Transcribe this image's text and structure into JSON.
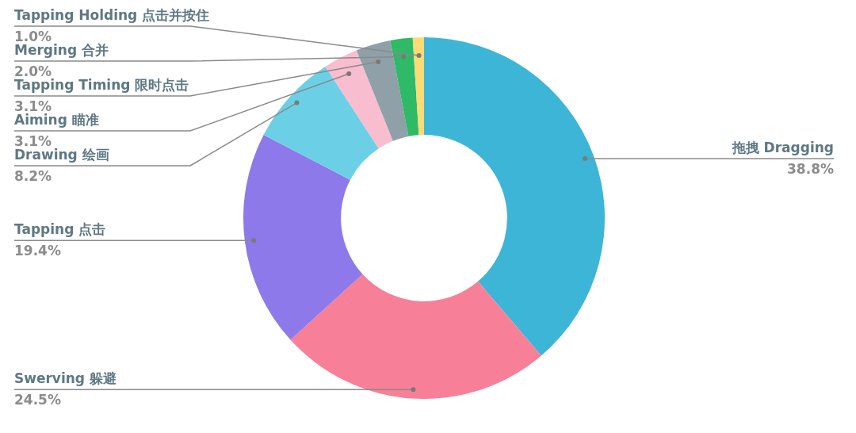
{
  "chart_data": {
    "type": "donut",
    "categories": [
      "拖拽 Dragging",
      "Swerving 躲避",
      "Tapping 点击",
      "Drawing 绘画",
      "Aiming 瞄准",
      "Tapping Timing 限时点击",
      "Merging 合并",
      "Tapping Holding 点击并按住"
    ],
    "values": [
      38.8,
      24.5,
      19.4,
      8.2,
      3.1,
      3.1,
      2.0,
      1.0
    ],
    "colors": [
      "#3db5d6",
      "#f77f98",
      "#8e79ea",
      "#6bd0e6",
      "#f9bdd0",
      "#8fa0a8",
      "#2eba66",
      "#fadb75"
    ],
    "value_labels": [
      "38.8%",
      "24.5%",
      "19.4%",
      "8.2%",
      "3.1%",
      "3.1%",
      "2.0%",
      "1.0%"
    ]
  }
}
